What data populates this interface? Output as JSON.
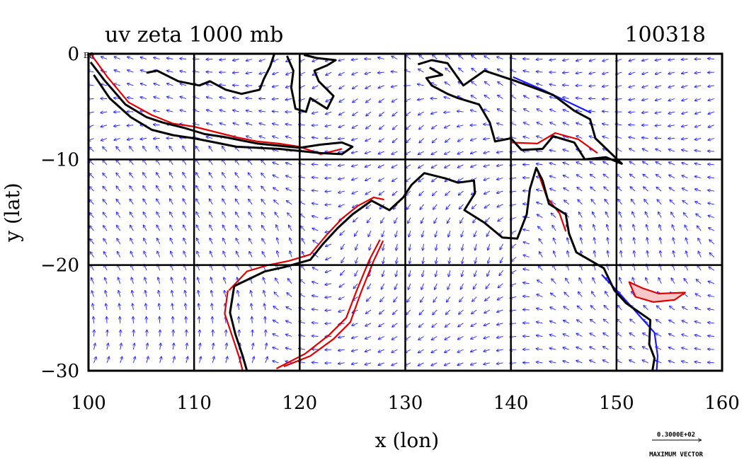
{
  "chart_data": {
    "type": "vector-field-map",
    "title": "uv zeta 1000 mb",
    "date_label": "100318",
    "xlabel": "x (lon)",
    "ylabel": "y (lat)",
    "xlim": [
      100,
      160
    ],
    "ylim": [
      -30,
      0
    ],
    "x_ticks": [
      100,
      110,
      120,
      130,
      140,
      150,
      160
    ],
    "y_ticks": [
      0,
      -10,
      -20,
      -30
    ],
    "x_tick_labels": [
      "100",
      "110",
      "120",
      "130",
      "140",
      "150",
      "160"
    ],
    "y_tick_labels": [
      "0",
      "−10",
      "−20",
      "−30"
    ],
    "corner_tag": "E0",
    "grid": true,
    "vector_color": "#1a1aff",
    "coast_color": "#000000",
    "contour_positive_color": "#e00000",
    "contour_negative_color": "#1a1aff",
    "contour_fill_color": "#f6c8c8",
    "reference_vector": {
      "value_label": "0.3000E+02",
      "caption": "MAXIMUM VECTOR"
    },
    "coastlines": [
      {
        "name": "sumatra-java-lesser-sunda",
        "points": [
          [
            100.2,
            -0.8
          ],
          [
            101.5,
            -2.5
          ],
          [
            103.5,
            -4.8
          ],
          [
            105.5,
            -6.0
          ],
          [
            107,
            -6.5
          ],
          [
            109,
            -7.0
          ],
          [
            111,
            -7.6
          ],
          [
            113,
            -7.9
          ],
          [
            114.5,
            -8.2
          ],
          [
            116,
            -8.5
          ],
          [
            118,
            -8.7
          ],
          [
            120,
            -8.9
          ],
          [
            122,
            -8.6
          ],
          [
            124,
            -8.4
          ],
          [
            125,
            -8.8
          ],
          [
            124,
            -9.5
          ],
          [
            122,
            -9.4
          ],
          [
            120,
            -9.2
          ],
          [
            118,
            -9.0
          ],
          [
            116,
            -8.9
          ],
          [
            114,
            -8.8
          ],
          [
            112,
            -8.4
          ],
          [
            110,
            -8.0
          ],
          [
            108,
            -7.7
          ],
          [
            106,
            -7.2
          ],
          [
            104,
            -6.0
          ],
          [
            102,
            -4.2
          ],
          [
            100.5,
            -2.0
          ]
        ]
      },
      {
        "name": "borneo-south",
        "points": [
          [
            105.5,
            -1.8
          ],
          [
            106.5,
            -1.6
          ],
          [
            108.5,
            -2.6
          ],
          [
            110.5,
            -3.0
          ],
          [
            111.5,
            -2.6
          ],
          [
            113,
            -3.4
          ],
          [
            114.5,
            -3.8
          ],
          [
            116.2,
            -3.4
          ],
          [
            116.6,
            -2.4
          ],
          [
            117.2,
            -1.2
          ],
          [
            117.6,
            0
          ]
        ]
      },
      {
        "name": "sulawesi",
        "points": [
          [
            118.8,
            -0.2
          ],
          [
            119.4,
            -1.6
          ],
          [
            119.2,
            -3.2
          ],
          [
            119.6,
            -5.2
          ],
          [
            120.6,
            -5.5
          ],
          [
            121,
            -4.2
          ],
          [
            122.6,
            -5.2
          ],
          [
            123.2,
            -4.0
          ],
          [
            121.8,
            -2.6
          ],
          [
            121.4,
            -1.6
          ],
          [
            122.6,
            -1.1
          ],
          [
            123.4,
            -0.6
          ],
          [
            121.6,
            -0.4
          ],
          [
            120.4,
            -0.1
          ]
        ]
      },
      {
        "name": "new-guinea",
        "points": [
          [
            131.2,
            -1.0
          ],
          [
            132.5,
            -0.6
          ],
          [
            134,
            -0.9
          ],
          [
            135.5,
            -3.0
          ],
          [
            137.5,
            -1.6
          ],
          [
            140.5,
            -2.6
          ],
          [
            144,
            -3.9
          ],
          [
            146,
            -5.4
          ],
          [
            147.5,
            -6.2
          ],
          [
            148,
            -8.0
          ],
          [
            150.5,
            -10.4
          ],
          [
            149,
            -9.8
          ],
          [
            147,
            -10.0
          ],
          [
            146,
            -8.4
          ],
          [
            144,
            -7.8
          ],
          [
            143,
            -9.0
          ],
          [
            141,
            -9.1
          ],
          [
            140,
            -8.0
          ],
          [
            138.5,
            -8.3
          ],
          [
            138,
            -6.5
          ],
          [
            137,
            -4.8
          ],
          [
            135,
            -4.2
          ],
          [
            134,
            -3.8
          ],
          [
            132.5,
            -3.0
          ],
          [
            132,
            -2.3
          ],
          [
            133.5,
            -2.0
          ],
          [
            132.3,
            -1.3
          ]
        ]
      },
      {
        "name": "australia",
        "points": [
          [
            113.8,
            -22
          ],
          [
            114.2,
            -21.8
          ],
          [
            116.7,
            -20.6
          ],
          [
            118.5,
            -20.2
          ],
          [
            121,
            -19.5
          ],
          [
            122.2,
            -18
          ],
          [
            123.6,
            -16.5
          ],
          [
            125,
            -15.2
          ],
          [
            126.8,
            -13.9
          ],
          [
            128.5,
            -14.8
          ],
          [
            129.8,
            -13.6
          ],
          [
            130.6,
            -12.4
          ],
          [
            131.8,
            -11.3
          ],
          [
            132.6,
            -11.5
          ],
          [
            133.8,
            -11.8
          ],
          [
            135,
            -12.2
          ],
          [
            136.5,
            -12
          ],
          [
            136.6,
            -13.2
          ],
          [
            135.6,
            -14.8
          ],
          [
            137.5,
            -16
          ],
          [
            139.2,
            -17.4
          ],
          [
            140.6,
            -17.5
          ],
          [
            141.5,
            -15.2
          ],
          [
            141.8,
            -12.8
          ],
          [
            142.4,
            -10.8
          ],
          [
            143,
            -12
          ],
          [
            143.6,
            -14.2
          ],
          [
            145.2,
            -15.2
          ],
          [
            145.5,
            -17
          ],
          [
            146.2,
            -18.8
          ],
          [
            148.8,
            -20.3
          ],
          [
            149.8,
            -22.4
          ],
          [
            150.9,
            -23.6
          ],
          [
            153.2,
            -25.2
          ],
          [
            153.1,
            -27.5
          ],
          [
            153.6,
            -28.8
          ],
          [
            153.4,
            -30
          ]
        ]
      },
      {
        "name": "australia-west",
        "points": [
          [
            113.8,
            -22
          ],
          [
            113.4,
            -24.5
          ],
          [
            113.9,
            -26.5
          ],
          [
            114.6,
            -28.6
          ],
          [
            115.0,
            -30
          ]
        ]
      }
    ],
    "contours": [
      {
        "sign": "positive",
        "points": [
          [
            100.2,
            0
          ],
          [
            101.8,
            -2.2
          ],
          [
            103.8,
            -4.6
          ],
          [
            106,
            -5.8
          ],
          [
            108,
            -6.6
          ],
          [
            110,
            -6.9
          ],
          [
            112,
            -7.4
          ],
          [
            114,
            -7.9
          ],
          [
            116,
            -8.3
          ],
          [
            118,
            -8.5
          ],
          [
            120,
            -8.8
          ],
          [
            122,
            -9.5
          ],
          [
            124,
            -9.0
          ]
        ]
      },
      {
        "name": "nw-coast",
        "sign": "positive",
        "points": [
          [
            113.3,
            -22.4
          ],
          [
            115,
            -20.6
          ],
          [
            117,
            -20.0
          ],
          [
            119,
            -19.6
          ],
          [
            121,
            -19
          ],
          [
            122.5,
            -17.2
          ],
          [
            124,
            -15.6
          ],
          [
            125.5,
            -14.4
          ],
          [
            127,
            -13.6
          ],
          [
            128,
            -13.8
          ]
        ]
      },
      {
        "name": "w-coast",
        "sign": "positive",
        "points": [
          [
            113.2,
            -22.4
          ],
          [
            112.9,
            -24.6
          ],
          [
            113.6,
            -26.7
          ],
          [
            114.3,
            -28.8
          ],
          [
            114.6,
            -30
          ]
        ]
      },
      {
        "name": "band-center",
        "sign": "positive",
        "points": [
          [
            117.8,
            -29.8
          ],
          [
            120.5,
            -28.4
          ],
          [
            122.8,
            -26.6
          ],
          [
            124.4,
            -25.0
          ],
          [
            125.4,
            -22.4
          ],
          [
            126.6,
            -19.5
          ],
          [
            127.6,
            -17.6
          ]
        ]
      },
      {
        "name": "band-center-2",
        "sign": "positive",
        "points": [
          [
            118.5,
            -29.6
          ],
          [
            121,
            -28.6
          ],
          [
            123.2,
            -27.0
          ],
          [
            124.8,
            -25.4
          ],
          [
            125.8,
            -22.6
          ],
          [
            127,
            -19.6
          ],
          [
            127.9,
            -17.7
          ]
        ]
      },
      {
        "name": "se-lobe",
        "sign": "positive",
        "closed": true,
        "points": [
          [
            151.2,
            -21.6
          ],
          [
            152.5,
            -22.2
          ],
          [
            154,
            -22.7
          ],
          [
            156.5,
            -22.6
          ],
          [
            155.5,
            -23.3
          ],
          [
            153.5,
            -23.5
          ],
          [
            151.8,
            -23.0
          ]
        ]
      },
      {
        "name": "e-coast-neg",
        "sign": "negative",
        "points": [
          [
            148.6,
            -20.9
          ],
          [
            150.4,
            -22.8
          ],
          [
            152,
            -24.6
          ],
          [
            153.6,
            -26.4
          ],
          [
            153.9,
            -28.6
          ],
          [
            153.8,
            -30
          ]
        ]
      },
      {
        "name": "ng-north-neg",
        "sign": "negative",
        "points": [
          [
            140.2,
            -2.2
          ],
          [
            143,
            -3.4
          ],
          [
            145.5,
            -4.6
          ],
          [
            147.6,
            -5.6
          ]
        ]
      },
      {
        "name": "ng-south-pos",
        "sign": "positive",
        "points": [
          [
            140,
            -8.4
          ],
          [
            142.5,
            -8.5
          ],
          [
            144.2,
            -7.5
          ],
          [
            146.4,
            -8.1
          ],
          [
            148.2,
            -9.4
          ]
        ]
      },
      {
        "name": "ne-coast",
        "sign": "positive",
        "points": [
          [
            142.6,
            -11.3
          ],
          [
            143.4,
            -13.6
          ],
          [
            144.6,
            -15.1
          ],
          [
            145.2,
            -16.8
          ]
        ]
      }
    ]
  }
}
